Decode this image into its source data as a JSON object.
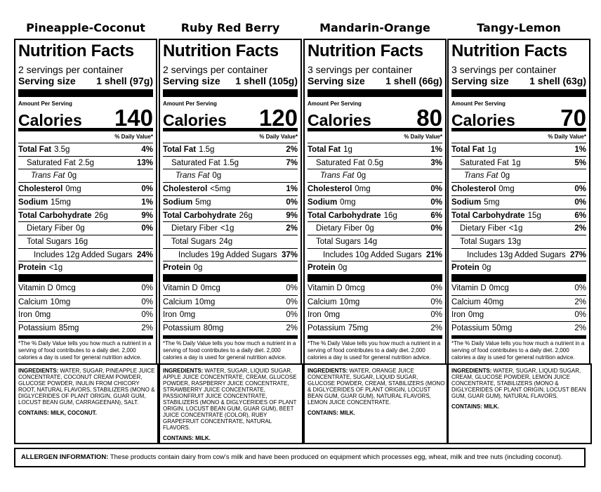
{
  "labels": [
    {
      "name": "Pineapple-Coconut",
      "title": "Nutrition Facts",
      "servings": "2 servings per container",
      "serving_size_label": "Serving size",
      "serving_size": "1 shell (97g)",
      "amount_per_serving": "Amount Per Serving",
      "calories_label": "Calories",
      "calories": "140",
      "daily_value_header": "% Daily Value*",
      "nutrients": [
        {
          "name": "Total Fat",
          "amount": "3.5g",
          "dv": "4%"
        },
        {
          "name": "Saturated Fat",
          "amount": "2.5g",
          "dv": "13%"
        },
        {
          "name": "Trans Fat",
          "amount": "0g"
        },
        {
          "name": "Cholesterol",
          "amount": "0mg",
          "dv": "0%"
        },
        {
          "name": "Sodium",
          "amount": "15mg",
          "dv": "1%"
        },
        {
          "name": "Total Carbohydrate",
          "amount": "26g",
          "dv": "9%"
        },
        {
          "name": "Dietary Fiber",
          "amount": "0g",
          "dv": "0%"
        },
        {
          "name": "Total Sugars",
          "amount": "16g"
        },
        {
          "name": "Includes 12g Added Sugars",
          "dv": "24%"
        },
        {
          "name": "Protein",
          "amount": "<1g"
        }
      ],
      "vitamins": [
        {
          "name": "Vitamin D",
          "amount": "0mcg",
          "dv": "0%"
        },
        {
          "name": "Calcium",
          "amount": "10mg",
          "dv": "0%"
        },
        {
          "name": "Iron",
          "amount": "0mg",
          "dv": "0%"
        },
        {
          "name": "Potassium",
          "amount": "85mg",
          "dv": "2%"
        }
      ],
      "footnote": "*The % Daily Value tells you how much a nutrient in a serving of food contributes to a daily diet. 2,000 calories a day is used for general nutrition advice.",
      "ingredients_label": "INGREDIENTS:",
      "ingredients": "WATER, SUGAR, PINEAPPLE JUICE CONCENTRATE, COCONUT CREAM POWDER, GLUCOSE POWDER, INULIN FROM CHICORY ROOT, NATURAL FLAVORS, STABILIZERS (MONO & DIGLYCERIDES OF PLANT ORIGIN, GUAR GUM, LOCUST BEAN GUM, CARRAGEENAN), SALT.",
      "contains": "CONTAINS: MILK, COCONUT."
    },
    {
      "name": "Ruby Red Berry",
      "title": "Nutrition Facts",
      "servings": "2 servings per container",
      "serving_size_label": "Serving size",
      "serving_size": "1 shell (105g)",
      "amount_per_serving": "Amount Per Serving",
      "calories_label": "Calories",
      "calories": "120",
      "daily_value_header": "% Daily Value*",
      "nutrients": [
        {
          "name": "Total Fat",
          "amount": "1.5g",
          "dv": "2%"
        },
        {
          "name": "Saturated Fat",
          "amount": "1.5g",
          "dv": "7%"
        },
        {
          "name": "Trans Fat",
          "amount": "0g"
        },
        {
          "name": "Cholesterol",
          "amount": "<5mg",
          "dv": "1%"
        },
        {
          "name": "Sodium",
          "amount": "5mg",
          "dv": "0%"
        },
        {
          "name": "Total Carbohydrate",
          "amount": "26g",
          "dv": "9%"
        },
        {
          "name": "Dietary Fiber",
          "amount": "<1g",
          "dv": "2%"
        },
        {
          "name": "Total Sugars",
          "amount": "24g"
        },
        {
          "name": "Includes 19g Added Sugars",
          "dv": "37%"
        },
        {
          "name": "Protein",
          "amount": "0g"
        }
      ],
      "vitamins": [
        {
          "name": "Vitamin D",
          "amount": "0mcg",
          "dv": "0%"
        },
        {
          "name": "Calcium",
          "amount": "10mg",
          "dv": "0%"
        },
        {
          "name": "Iron",
          "amount": "0mg",
          "dv": "0%"
        },
        {
          "name": "Potassium",
          "amount": "80mg",
          "dv": "2%"
        }
      ],
      "footnote": "*The % Daily Value tells you how much a nutrient in a serving of food contributes to a daily diet. 2,000 calories a day is used for general nutrition advice.",
      "ingredients_label": "INGREDIENTS:",
      "ingredients": "WATER, SUGAR, LIQUID SUGAR, APPLE JUICE CONCENTRATE, CREAM, GLUCOSE POWDER, RASPBERRY JUICE CONCENTRATE, STRAWBERRY JUICE CONCENTRATE, PASSIONFRUIT JUICE CONCENTRATE, STABILIZERS (MONO & DIGLYCERIDES OF PLANT ORIGIN, LOCUST BEAN GUM, GUAR GUM), BEET JUICE CONCENTRATE (COLOR), RUBY GRAPEFRUIT CONCENTRATE, NATURAL FLAVORS.",
      "contains": "CONTAINS: MILK."
    },
    {
      "name": "Mandarin-Orange",
      "title": "Nutrition Facts",
      "servings": "3 servings per container",
      "serving_size_label": "Serving size",
      "serving_size": "1 shell (66g)",
      "amount_per_serving": "Amount Per Serving",
      "calories_label": "Calories",
      "calories": "80",
      "daily_value_header": "% Daily Value*",
      "nutrients": [
        {
          "name": "Total Fat",
          "amount": "1g",
          "dv": "1%"
        },
        {
          "name": "Saturated Fat",
          "amount": "0.5g",
          "dv": "3%"
        },
        {
          "name": "Trans Fat",
          "amount": "0g"
        },
        {
          "name": "Cholesterol",
          "amount": "0mg",
          "dv": "0%"
        },
        {
          "name": "Sodium",
          "amount": "0mg",
          "dv": "0%"
        },
        {
          "name": "Total Carbohydrate",
          "amount": "16g",
          "dv": "6%"
        },
        {
          "name": "Dietary Fiber",
          "amount": "0g",
          "dv": "0%"
        },
        {
          "name": "Total Sugars",
          "amount": "14g"
        },
        {
          "name": "Includes 10g Added Sugars",
          "dv": "21%"
        },
        {
          "name": "Protein",
          "amount": "0g"
        }
      ],
      "vitamins": [
        {
          "name": "Vitamin D",
          "amount": "0mcg",
          "dv": "0%"
        },
        {
          "name": "Calcium",
          "amount": "10mg",
          "dv": "0%"
        },
        {
          "name": "Iron",
          "amount": "0mg",
          "dv": "0%"
        },
        {
          "name": "Potassium",
          "amount": "75mg",
          "dv": "2%"
        }
      ],
      "footnote": "*The % Daily Value tells you how much a nutrient in a serving of food contributes to a daily diet. 2,000 calories a day is used for general nutrition advice.",
      "ingredients_label": "INGREDIENTS:",
      "ingredients": "WATER, ORANGE JUICE CONCENTRATE, SUGAR, LIQUID SUGAR, GLUCOSE POWDER, CREAM, STABILIZERS (MONO & DIGLYCERIDES OF PLANT ORIGIN, LOCUST BEAN GUM, GUAR GUM), NATURAL FLAVORS, LEMON JUICE CONCENTRATE.",
      "contains": "CONTAINS: MILK."
    },
    {
      "name": "Tangy-Lemon",
      "title": "Nutrition Facts",
      "servings": "3 servings per container",
      "serving_size_label": "Serving size",
      "serving_size": "1 shell (63g)",
      "amount_per_serving": "Amount Per Serving",
      "calories_label": "Calories",
      "calories": "70",
      "daily_value_header": "% Daily Value*",
      "nutrients": [
        {
          "name": "Total Fat",
          "amount": "1g",
          "dv": "1%"
        },
        {
          "name": "Saturated Fat",
          "amount": "1g",
          "dv": "5%"
        },
        {
          "name": "Trans Fat",
          "amount": "0g"
        },
        {
          "name": "Cholesterol",
          "amount": "0mg",
          "dv": "0%"
        },
        {
          "name": "Sodium",
          "amount": "5mg",
          "dv": "0%"
        },
        {
          "name": "Total Carbohydrate",
          "amount": "15g",
          "dv": "6%"
        },
        {
          "name": "Dietary Fiber",
          "amount": "<1g",
          "dv": "2%"
        },
        {
          "name": "Total Sugars",
          "amount": "13g"
        },
        {
          "name": "Includes 13g Added Sugars",
          "dv": "27%"
        },
        {
          "name": "Protein",
          "amount": "0g"
        }
      ],
      "vitamins": [
        {
          "name": "Vitamin D",
          "amount": "0mcg",
          "dv": "0%"
        },
        {
          "name": "Calcium",
          "amount": "40mg",
          "dv": "2%"
        },
        {
          "name": "Iron",
          "amount": "0mg",
          "dv": "0%"
        },
        {
          "name": "Potassium",
          "amount": "50mg",
          "dv": "2%"
        }
      ],
      "footnote": "*The % Daily Value tells you how much a nutrient in a serving of food contributes to a daily diet. 2,000 calories a day is used for general nutrition advice.",
      "ingredients_label": "INGREDIENTS:",
      "ingredients": "WATER, SUGAR, LIQUID SUGAR, CREAM, GLUCOSE POWDER, LEMON JUICE CONCENTRATE, STABILIZERS (MONO & DIGLYCERIDES OF PLANT ORIGIN, LOCUST BEAN GUM, GUAR GUM), NATURAL FLAVORS.",
      "contains": "CONTAINS: MILK."
    }
  ],
  "allergen": {
    "label": "ALLERGEN INFORMATION:",
    "text": "These products contain dairy from cow's milk and have been produced on equipment which processes egg, wheat, milk and tree nuts (including coconut)."
  }
}
